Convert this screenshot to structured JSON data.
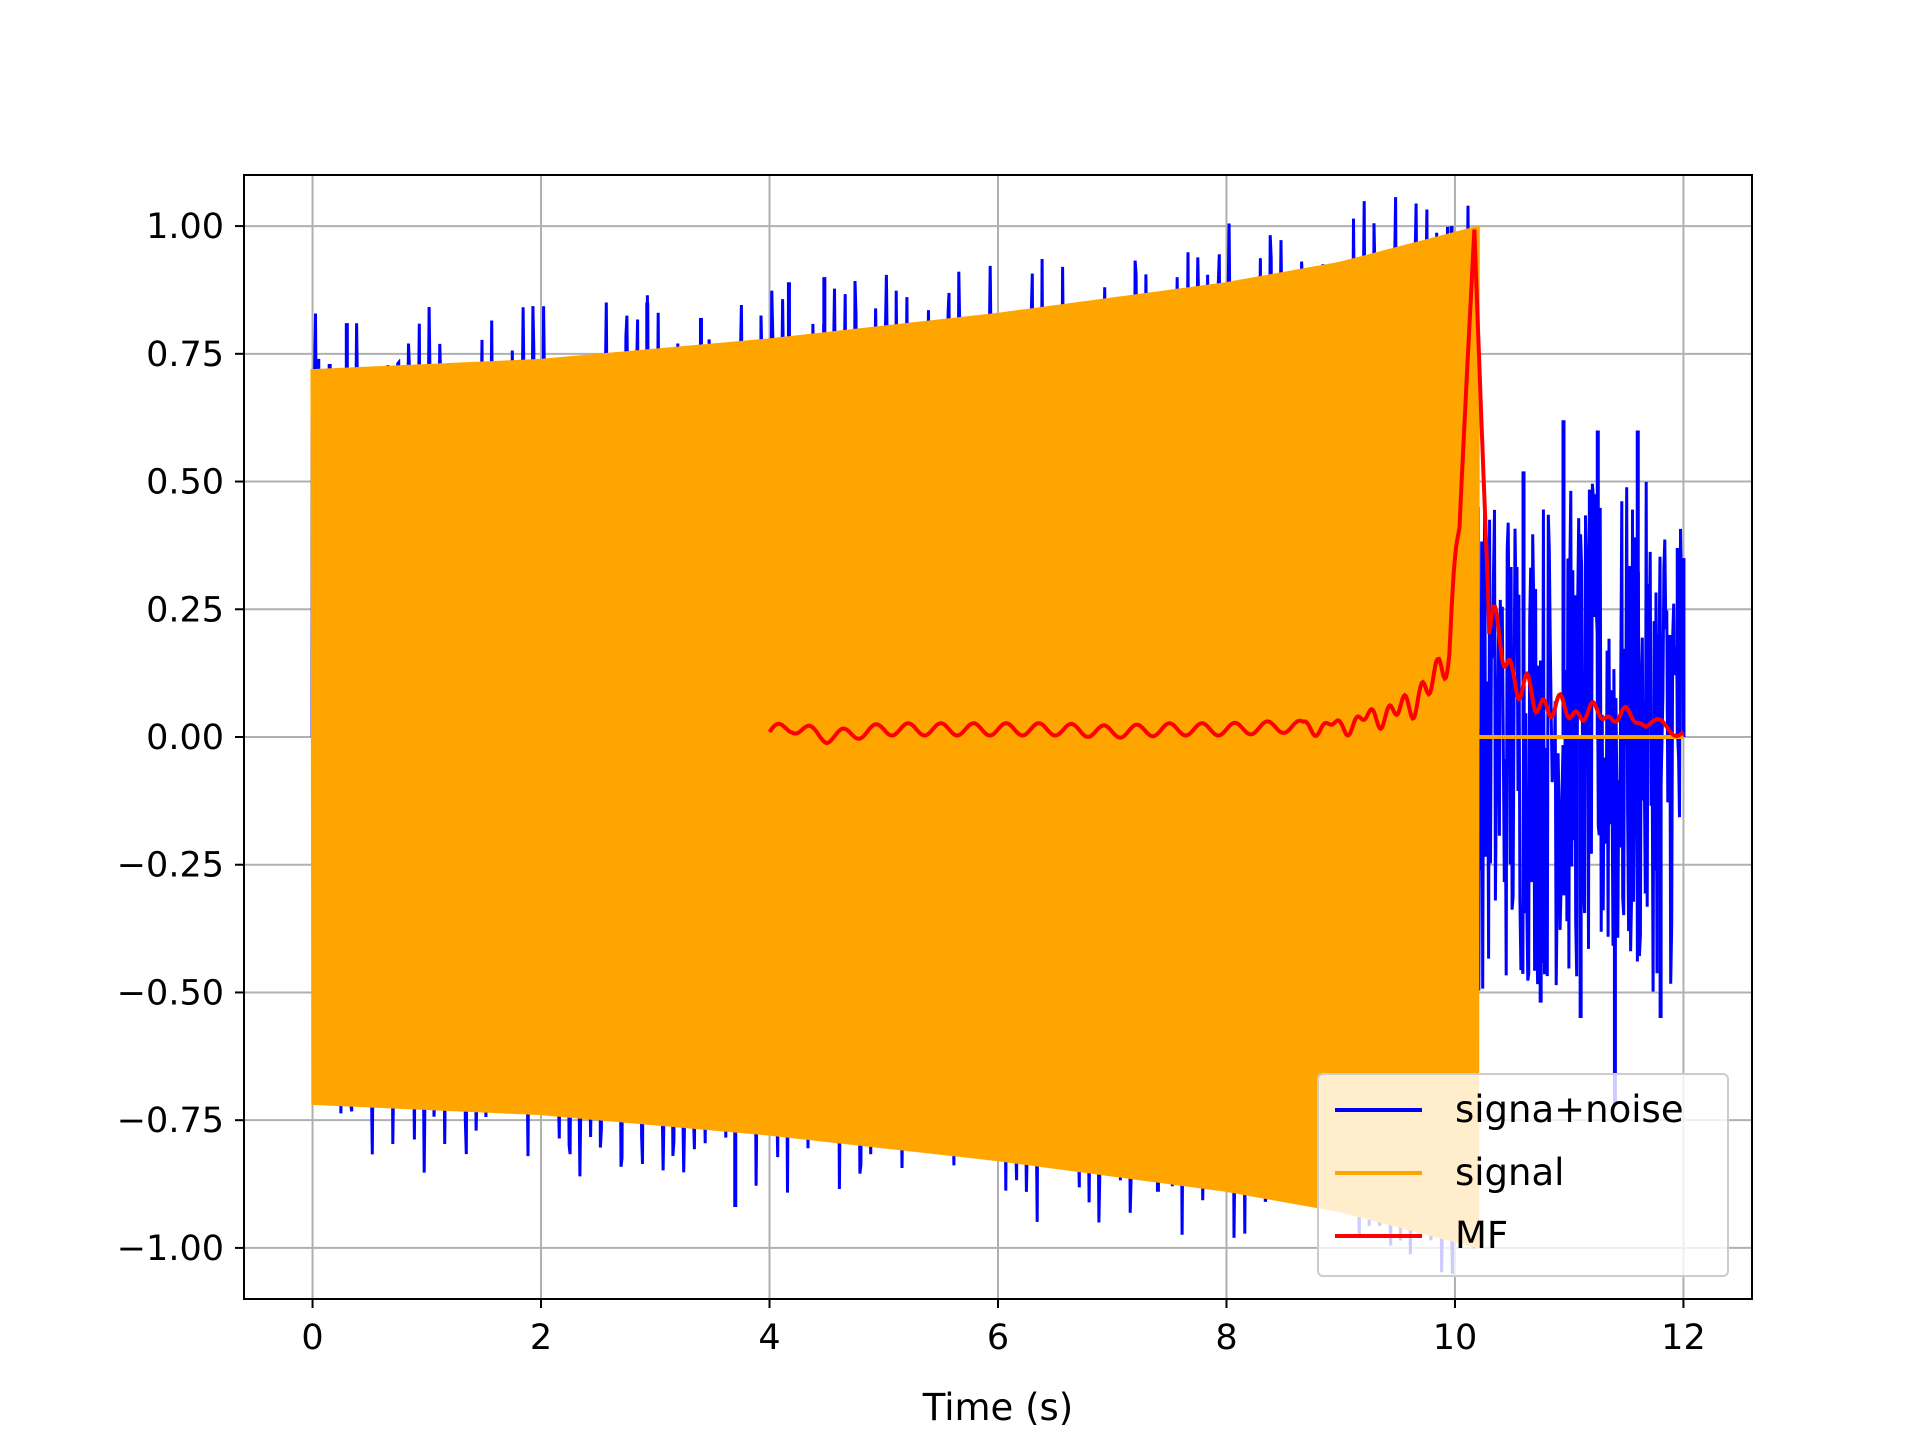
{
  "chart_data": {
    "type": "line",
    "title": "",
    "xlabel": "Time (s)",
    "ylabel": "",
    "xlim": [
      -0.6,
      12.6
    ],
    "ylim": [
      -1.1,
      1.1
    ],
    "xticks": [
      0,
      2,
      4,
      6,
      8,
      10,
      12
    ],
    "xtick_labels": [
      "0",
      "2",
      "4",
      "6",
      "8",
      "10",
      "12"
    ],
    "yticks": [
      1.0,
      0.75,
      0.5,
      0.25,
      0.0,
      -0.25,
      -0.5,
      -0.75,
      -1.0
    ],
    "ytick_labels": [
      "1.00",
      "0.75",
      "0.50",
      "0.25",
      "0.00",
      "−0.25",
      "−0.50",
      "−0.75",
      "−1.00"
    ],
    "grid": true,
    "legend_position": "lower-right",
    "series": [
      {
        "name": "signa+noise",
        "color": "#0000ff",
        "description_points": {
          "x": [
            0.0,
            0.05,
            0.15,
            0.3,
            2.93,
            3.4,
            3.7,
            4.17,
            4.48,
            7.4,
            9.97,
            10.2,
            10.6,
            10.75,
            10.95,
            11.1,
            11.25,
            11.4,
            11.6,
            11.8,
            11.95,
            12.0
          ],
          "y": [
            0.63,
            0.74,
            0.73,
            0.81,
            0.85,
            0.82,
            -0.92,
            0.89,
            0.9,
            -0.89,
            1.0,
            0.45,
            0.52,
            -0.52,
            0.62,
            -0.55,
            0.6,
            -0.72,
            0.6,
            -0.55,
            0.37,
            0.35
          ]
        }
      },
      {
        "name": "signal",
        "color": "#ffa500",
        "envelope": {
          "x": [
            0.0,
            2.0,
            4.0,
            6.0,
            8.0,
            9.0,
            10.2
          ],
          "upper": [
            0.72,
            0.74,
            0.78,
            0.83,
            0.89,
            0.93,
            1.0
          ],
          "lower": [
            -0.72,
            -0.74,
            -0.78,
            -0.83,
            -0.89,
            -0.93,
            -1.0
          ]
        },
        "end_time": 10.2,
        "post_value": 0.0
      },
      {
        "name": "MF",
        "color": "#ff0000",
        "x": [
          4.0,
          4.2,
          4.5,
          5.0,
          5.5,
          6.0,
          6.5,
          7.0,
          7.5,
          8.0,
          8.5,
          9.0,
          9.3,
          9.5,
          9.7,
          9.85,
          9.95,
          10.05,
          10.17,
          10.3,
          10.4,
          10.5,
          10.7,
          11.0,
          11.5,
          12.0
        ],
        "y": [
          0.01,
          0.02,
          0.0,
          0.015,
          0.015,
          0.015,
          0.015,
          0.01,
          0.015,
          0.015,
          0.02,
          0.02,
          0.04,
          0.05,
          0.08,
          0.12,
          0.18,
          0.45,
          1.0,
          0.22,
          0.19,
          0.12,
          0.07,
          0.05,
          0.04,
          0.01
        ]
      }
    ]
  }
}
